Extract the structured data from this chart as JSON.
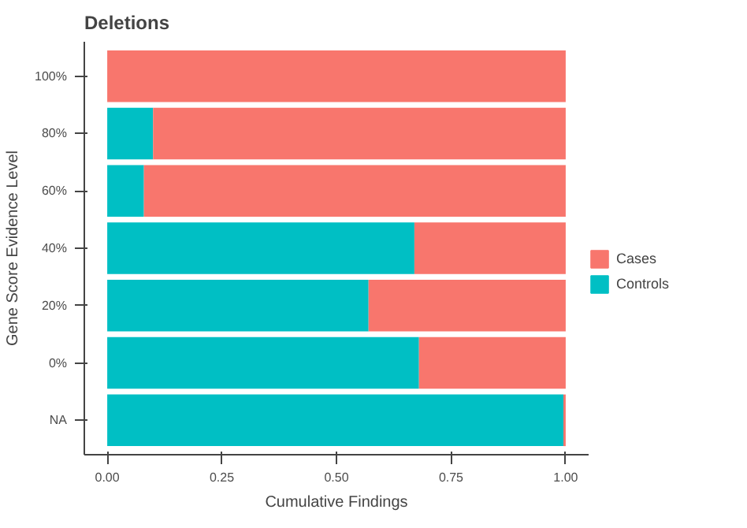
{
  "chart_data": {
    "type": "bar",
    "orientation": "horizontal",
    "stacked": true,
    "title": "Deletions",
    "xlabel": "Cumulative Findings",
    "ylabel": "Gene Score Evidence Level",
    "categories": [
      "100%",
      "80%",
      "60%",
      "40%",
      "20%",
      "0%",
      "NA"
    ],
    "series": [
      {
        "name": "Controls",
        "color": "#00bfc4",
        "values": [
          0,
          0.1,
          0.08,
          0.67,
          0.57,
          0.68,
          0.995
        ]
      },
      {
        "name": "Cases",
        "color": "#f8766d",
        "values": [
          1,
          0.9,
          0.92,
          0.33,
          0.43,
          0.32,
          0.005
        ]
      }
    ],
    "xlim": [
      -0.05,
      1.05
    ],
    "xticks": [
      {
        "value": 0,
        "label": "0.00"
      },
      {
        "value": 0.25,
        "label": "0.25"
      },
      {
        "value": 0.5,
        "label": "0.50"
      },
      {
        "value": 0.75,
        "label": "0.75"
      },
      {
        "value": 1,
        "label": "1.00"
      }
    ],
    "grid": false,
    "legend": "right"
  }
}
